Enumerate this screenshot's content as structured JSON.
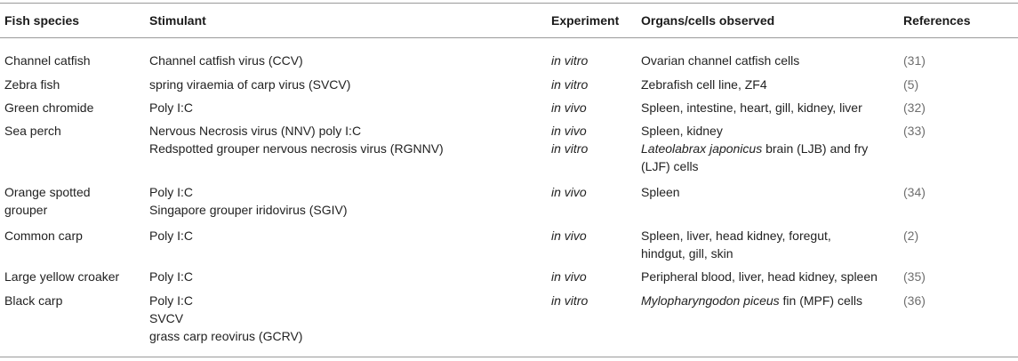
{
  "headers": {
    "species": "Fish species",
    "stimulant": "Stimulant",
    "experiment": "Experiment",
    "organs": "Organs/cells observed",
    "references": "References"
  },
  "rows": [
    {
      "species": [
        "Channel catfish"
      ],
      "stimulant": [
        "Channel catfish virus (CCV)"
      ],
      "experiment": [
        "in vitro"
      ],
      "organs": [
        [
          {
            "t": "Ovarian channel catfish cells"
          }
        ]
      ],
      "reference": "(31)"
    },
    {
      "species": [
        "Zebra fish"
      ],
      "stimulant": [
        "spring viraemia of carp virus (SVCV)"
      ],
      "experiment": [
        "in vitro"
      ],
      "organs": [
        [
          {
            "t": "Zebrafish cell line, ZF4"
          }
        ]
      ],
      "reference": "(5)"
    },
    {
      "species": [
        "Green chromide"
      ],
      "stimulant": [
        "Poly I:C"
      ],
      "experiment": [
        "in vivo"
      ],
      "organs": [
        [
          {
            "t": "Spleen, intestine, heart, gill, kidney, liver"
          }
        ]
      ],
      "reference": "(32)"
    },
    {
      "species": [
        "Sea perch"
      ],
      "stimulant": [
        "Nervous Necrosis virus (NNV) poly I:C",
        "Redspotted grouper nervous necrosis virus (RGNNV)"
      ],
      "experiment": [
        "in vivo",
        "in vitro"
      ],
      "organs": [
        [
          {
            "t": "Spleen, kidney"
          }
        ],
        [
          {
            "t": "Lateolabrax japonicus",
            "i": true
          },
          {
            "t": " brain (LJB) and fry"
          }
        ],
        [
          {
            "t": "(LJF) cells"
          }
        ]
      ],
      "reference": "(33)"
    },
    {
      "species": [
        "Orange spotted",
        "grouper"
      ],
      "stimulant": [
        "Poly I:C",
        "Singapore grouper iridovirus (SGIV)"
      ],
      "experiment": [
        "in vivo"
      ],
      "organs": [
        [
          {
            "t": "Spleen"
          }
        ]
      ],
      "reference": "(34)"
    },
    {
      "species": [
        "Common carp"
      ],
      "stimulant": [
        "Poly I:C"
      ],
      "experiment": [
        "in vivo"
      ],
      "organs": [
        [
          {
            "t": "Spleen, liver, head kidney, foregut,"
          }
        ],
        [
          {
            "t": "hindgut, gill, skin"
          }
        ]
      ],
      "reference": "(2)"
    },
    {
      "species": [
        "Large yellow croaker"
      ],
      "stimulant": [
        "Poly I:C"
      ],
      "experiment": [
        "in vivo"
      ],
      "organs": [
        [
          {
            "t": "Peripheral blood, liver, head kidney, spleen"
          }
        ]
      ],
      "reference": "(35)"
    },
    {
      "species": [
        "Black carp"
      ],
      "stimulant": [
        "Poly I:C",
        "SVCV",
        "grass carp reovirus (GCRV)"
      ],
      "experiment": [
        "in vitro"
      ],
      "organs": [
        [
          {
            "t": "Mylopharyngodon piceus",
            "i": true
          },
          {
            "t": " fin (MPF) cells"
          }
        ]
      ],
      "reference": "(36)"
    }
  ]
}
